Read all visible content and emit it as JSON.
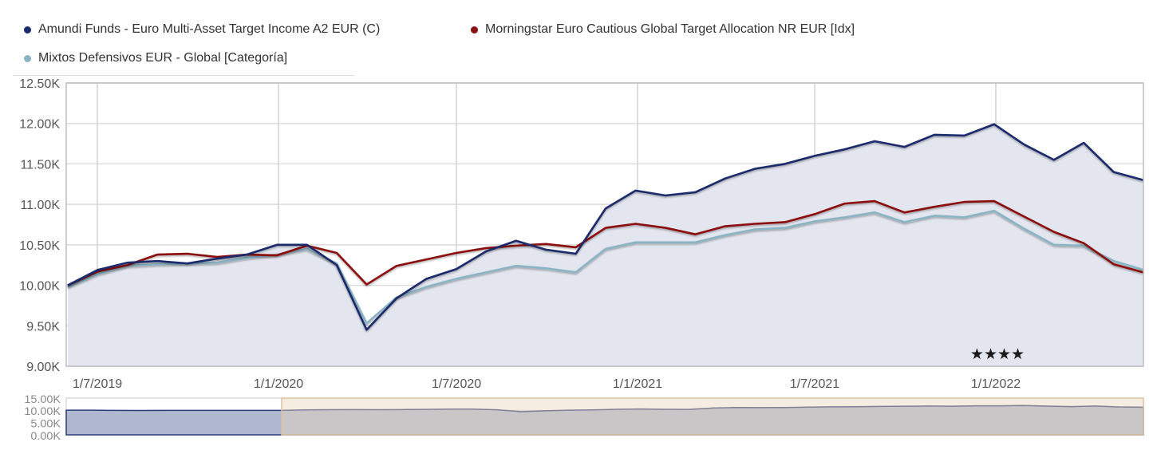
{
  "legend": {
    "items": [
      {
        "label": "Amundi Funds - Euro Multi-Asset Target Income A2 EUR (C)",
        "color": "#1a2a6c"
      },
      {
        "label": "Morningstar Euro Cautious Global Target Allocation NR EUR [Idx]",
        "color": "#8b1010"
      },
      {
        "label": "Mixtos Defensivos EUR - Global [Categoría]",
        "color": "#8ab4c4"
      }
    ]
  },
  "rating": {
    "stars": "★★★★"
  },
  "navigator": {
    "y_ticks": [
      "15.00K",
      "10.00K",
      "5.00K",
      "0.00K"
    ]
  },
  "chart_data": {
    "type": "line",
    "title": "",
    "xlabel": "",
    "ylabel": "",
    "ylim": [
      9000,
      12500
    ],
    "grid": true,
    "legend_position": "top",
    "y_ticks": [
      "12.50K",
      "12.00K",
      "11.50K",
      "11.00K",
      "10.50K",
      "10.00K",
      "9.50K",
      "9.00K"
    ],
    "x_ticks": [
      "1/7/2019",
      "1/1/2020",
      "1/7/2020",
      "1/1/2021",
      "1/7/2021",
      "1/1/2022"
    ],
    "x": [
      "2019-06",
      "2019-07",
      "2019-08",
      "2019-09",
      "2019-10",
      "2019-11",
      "2019-12",
      "2020-01",
      "2020-02",
      "2020-03",
      "2020-04",
      "2020-05",
      "2020-06",
      "2020-07",
      "2020-08",
      "2020-09",
      "2020-10",
      "2020-11",
      "2020-12",
      "2021-01",
      "2021-02",
      "2021-03",
      "2021-04",
      "2021-05",
      "2021-06",
      "2021-07",
      "2021-08",
      "2021-09",
      "2021-10",
      "2021-11",
      "2021-12",
      "2022-01",
      "2022-02",
      "2022-03",
      "2022-04",
      "2022-05",
      "2022-06"
    ],
    "series": [
      {
        "name": "Amundi Funds - Euro Multi-Asset Target Income A2 EUR (C)",
        "color": "#1a2a6c",
        "area": true,
        "values": [
          10000,
          10190,
          10280,
          10300,
          10270,
          10330,
          10380,
          10500,
          10500,
          10250,
          9450,
          9840,
          10080,
          10200,
          10420,
          10550,
          10440,
          10390,
          10950,
          11170,
          11110,
          11150,
          11320,
          11440,
          11500,
          11600,
          11680,
          11780,
          11710,
          11860,
          11850,
          11990,
          11740,
          11550,
          11760,
          11400,
          11300
        ]
      },
      {
        "name": "Morningstar Euro Cautious Global Target Allocation NR EUR [Idx]",
        "color": "#8b1010",
        "values": [
          10000,
          10170,
          10250,
          10380,
          10390,
          10350,
          10380,
          10370,
          10490,
          10400,
          10010,
          10240,
          10320,
          10400,
          10460,
          10490,
          10510,
          10470,
          10710,
          10760,
          10710,
          10630,
          10730,
          10760,
          10780,
          10880,
          11010,
          11040,
          10900,
          10970,
          11030,
          11040,
          10850,
          10660,
          10520,
          10260,
          10160
        ]
      },
      {
        "name": "Mixtos Defensivos EUR - Global [Categoría]",
        "color": "#8ab4c4",
        "values": [
          9980,
          10140,
          10240,
          10260,
          10270,
          10280,
          10340,
          10380,
          10450,
          10270,
          9530,
          9850,
          9980,
          10080,
          10160,
          10240,
          10210,
          10160,
          10450,
          10530,
          10530,
          10530,
          10620,
          10690,
          10710,
          10790,
          10840,
          10900,
          10780,
          10860,
          10840,
          10920,
          10700,
          10500,
          10490,
          10300,
          10190
        ]
      }
    ]
  }
}
